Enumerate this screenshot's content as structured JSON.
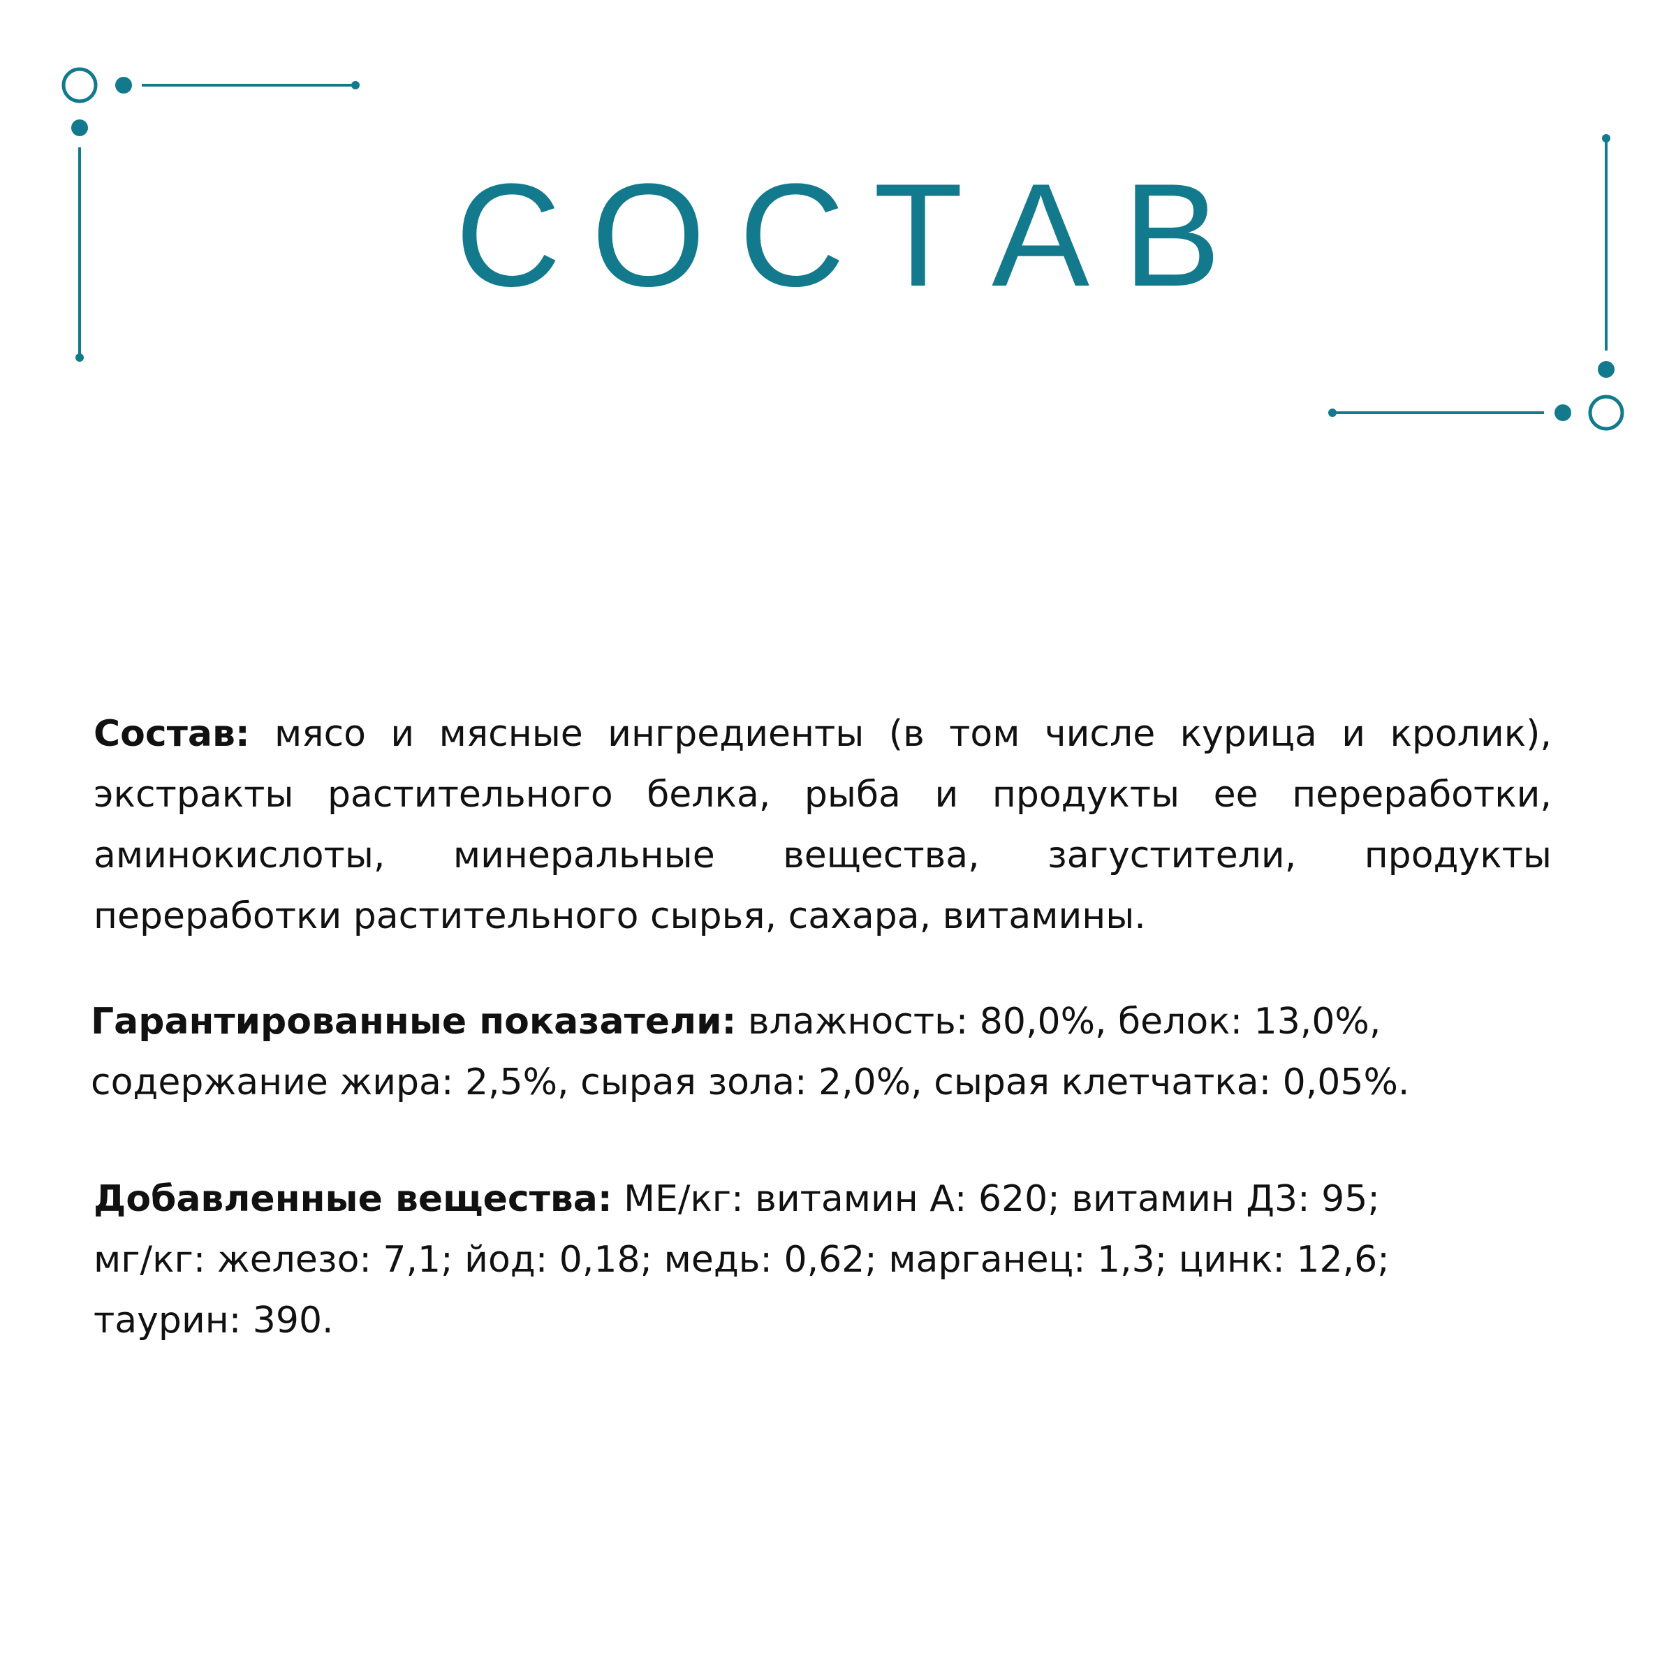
{
  "accent_color": "#127a8c",
  "title": "СОСТАВ",
  "composition": {
    "label": "Состав:",
    "line1": " мясо и мясные ингредиенты (в том числе курица и кролик),",
    "line2": "экстракты растительного белка, рыба и продукты ее переработки,",
    "line3": "аминокислоты, минеральные вещества, загустители, продукты",
    "line4": "переработки растительного сырья, сахара, витамины."
  },
  "guaranteed": {
    "label": "Гарантированные показатели:",
    "line1": " влажность: 80,0%, белок: 13,0%,",
    "line2": "содержание жира: 2,5%, сырая зола: 2,0%, сырая клетчатка: 0,05%."
  },
  "additives": {
    "label": "Добавленные вещества:",
    "line1": " МЕ/кг: витамин А: 620; витамин Д3: 95;",
    "line2": "мг/кг: железо: 7,1; йод: 0,18; медь: 0,62; марганец: 1,3; цинк: 12,6;",
    "line3": "таурин: 390."
  }
}
